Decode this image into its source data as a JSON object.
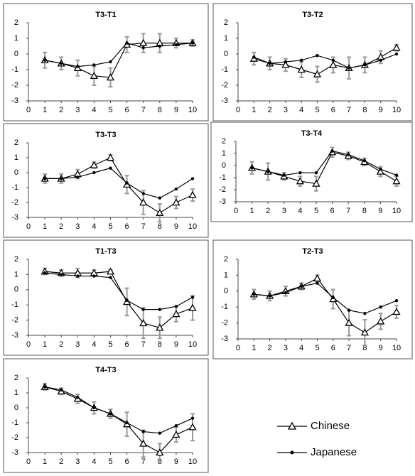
{
  "chart_data": [
    {
      "type": "line",
      "title": "T3-T1",
      "x": [
        1,
        2,
        3,
        4,
        5,
        6,
        7,
        8,
        9,
        10
      ],
      "xlim": [
        0,
        10
      ],
      "xticks": [
        0,
        1,
        2,
        3,
        4,
        5,
        6,
        7,
        8,
        9,
        10
      ],
      "ylim": [
        -3,
        2
      ],
      "yticks": [
        -3,
        -2,
        -1,
        0,
        1,
        2
      ],
      "series": [
        {
          "name": "Chinese",
          "color": "#000000",
          "values": [
            -0.4,
            -0.6,
            -0.9,
            -1.4,
            -1.5,
            0.6,
            0.7,
            0.7,
            0.7,
            0.7
          ],
          "errors": [
            0.5,
            0.4,
            0.5,
            0.6,
            0.6,
            0.5,
            0.6,
            0.6,
            0.3,
            0.2
          ]
        },
        {
          "name": "Japanese",
          "color": "#000000",
          "values": [
            -0.4,
            -0.6,
            -0.8,
            -0.7,
            -0.5,
            0.7,
            0.4,
            0.5,
            0.6,
            0.7
          ]
        }
      ]
    },
    {
      "type": "line",
      "title": "T3-T2",
      "x": [
        1,
        2,
        3,
        4,
        5,
        6,
        7,
        8,
        9,
        10
      ],
      "xlim": [
        0,
        10
      ],
      "xticks": [
        0,
        1,
        2,
        3,
        4,
        5,
        6,
        7,
        8,
        9,
        10
      ],
      "ylim": [
        -3,
        2
      ],
      "yticks": [
        -3,
        -2,
        -1,
        0,
        1,
        2
      ],
      "series": [
        {
          "color": "#000000",
          "values": [
            -0.3,
            -0.6,
            -0.7,
            -1.0,
            -1.3,
            -0.7,
            -0.9,
            -0.7,
            -0.2,
            0.4
          ],
          "errors": [
            0.4,
            0.4,
            0.4,
            0.5,
            0.5,
            0.5,
            0.7,
            0.5,
            0.4,
            0.2
          ]
        },
        {
          "color": "#000000",
          "values": [
            -0.2,
            -0.6,
            -0.5,
            -0.4,
            -0.1,
            -0.4,
            -0.9,
            -0.7,
            -0.4,
            0.0
          ]
        }
      ]
    },
    {
      "type": "line",
      "title": "T3-T3",
      "x": [
        1,
        2,
        3,
        4,
        5,
        6,
        7,
        8,
        9,
        10
      ],
      "xlim": [
        0,
        10
      ],
      "xticks": [
        0,
        1,
        2,
        3,
        4,
        5,
        6,
        7,
        8,
        9,
        10
      ],
      "ylim": [
        -3,
        2
      ],
      "yticks": [
        -3,
        -2,
        -1,
        0,
        1,
        2
      ],
      "series": [
        {
          "color": "#000000",
          "values": [
            -0.4,
            -0.4,
            -0.1,
            0.5,
            1.0,
            -0.8,
            -2.0,
            -2.7,
            -2.0,
            -1.5
          ],
          "errors": [
            0.3,
            0.3,
            0.3,
            0.2,
            0.2,
            0.6,
            0.8,
            0.6,
            0.4,
            0.4
          ]
        },
        {
          "color": "#000000",
          "values": [
            -0.4,
            -0.4,
            -0.3,
            0.0,
            0.3,
            -0.7,
            -1.4,
            -1.7,
            -1.1,
            -0.4
          ]
        }
      ]
    },
    {
      "type": "line",
      "title": "T3-T4",
      "x": [
        1,
        2,
        3,
        4,
        5,
        6,
        7,
        8,
        9,
        10
      ],
      "xlim": [
        0,
        10
      ],
      "xticks": [
        0,
        1,
        2,
        3,
        4,
        5,
        6,
        7,
        8,
        9,
        10
      ],
      "ylim": [
        -3,
        2
      ],
      "yticks": [
        -3,
        -2,
        -1,
        0,
        1,
        2
      ],
      "series": [
        {
          "color": "#000000",
          "values": [
            -0.2,
            -0.5,
            -0.9,
            -1.3,
            -1.5,
            1.1,
            0.8,
            0.3,
            -0.5,
            -1.3
          ],
          "errors": [
            0.5,
            0.7,
            0.3,
            0.4,
            0.6,
            0.4,
            0.3,
            0.3,
            0.4,
            0.4
          ]
        },
        {
          "color": "#000000",
          "values": [
            -0.2,
            -0.5,
            -0.8,
            -0.6,
            -0.6,
            1.2,
            0.9,
            0.4,
            -0.3,
            -0.8
          ]
        }
      ]
    },
    {
      "type": "line",
      "title": "T1-T3",
      "x": [
        1,
        2,
        3,
        4,
        5,
        6,
        7,
        8,
        9,
        10
      ],
      "xlim": [
        0,
        10
      ],
      "xticks": [
        0,
        1,
        2,
        3,
        4,
        5,
        6,
        7,
        8,
        9,
        10
      ],
      "ylim": [
        -3,
        2
      ],
      "yticks": [
        -3,
        -2,
        -1,
        0,
        1,
        2
      ],
      "series": [
        {
          "color": "#000000",
          "values": [
            1.2,
            1.1,
            1.1,
            1.1,
            1.2,
            -0.8,
            -2.2,
            -2.5,
            -1.6,
            -1.2
          ],
          "errors": [
            0.2,
            0.2,
            0.3,
            0.2,
            0.1,
            0.9,
            1.0,
            0.7,
            0.5,
            0.8
          ]
        },
        {
          "color": "#000000",
          "values": [
            1.1,
            1.0,
            0.9,
            0.9,
            0.8,
            -0.7,
            -1.3,
            -1.3,
            -1.1,
            -0.5
          ]
        }
      ]
    },
    {
      "type": "line",
      "title": "T2-T3",
      "x": [
        1,
        2,
        3,
        4,
        5,
        6,
        7,
        8,
        9,
        10
      ],
      "xlim": [
        0,
        10
      ],
      "xticks": [
        0,
        1,
        2,
        3,
        4,
        5,
        6,
        7,
        8,
        9,
        10
      ],
      "ylim": [
        -3,
        2
      ],
      "yticks": [
        -3,
        -2,
        -1,
        0,
        1,
        2
      ],
      "series": [
        {
          "color": "#000000",
          "values": [
            -0.2,
            -0.3,
            0.0,
            0.3,
            0.8,
            -0.5,
            -2.0,
            -2.6,
            -1.9,
            -1.3
          ],
          "errors": [
            0.3,
            0.3,
            0.3,
            0.2,
            0.2,
            0.6,
            0.8,
            0.8,
            0.5,
            0.4
          ]
        },
        {
          "color": "#000000",
          "values": [
            -0.2,
            -0.3,
            -0.1,
            0.3,
            0.5,
            -0.4,
            -1.2,
            -1.4,
            -1.0,
            -0.6
          ]
        }
      ]
    },
    {
      "type": "line",
      "title": "T4-T3",
      "x": [
        1,
        2,
        3,
        4,
        5,
        6,
        7,
        8,
        9,
        10
      ],
      "xlim": [
        0,
        10
      ],
      "xticks": [
        0,
        1,
        2,
        3,
        4,
        5,
        6,
        7,
        8,
        9,
        10
      ],
      "ylim": [
        -3,
        2
      ],
      "yticks": [
        -3,
        -2,
        -1,
        0,
        1,
        2
      ],
      "series": [
        {
          "color": "#000000",
          "values": [
            1.4,
            1.1,
            0.6,
            0.0,
            -0.4,
            -1.1,
            -2.4,
            -3.0,
            -1.8,
            -1.3
          ],
          "errors": [
            0.2,
            0.2,
            0.3,
            0.4,
            0.3,
            0.8,
            0.9,
            0.6,
            0.5,
            0.9
          ]
        },
        {
          "color": "#000000",
          "values": [
            1.4,
            1.2,
            0.7,
            0.0,
            -0.4,
            -1.0,
            -1.6,
            -1.7,
            -1.2,
            -0.7
          ]
        }
      ]
    }
  ]
}
